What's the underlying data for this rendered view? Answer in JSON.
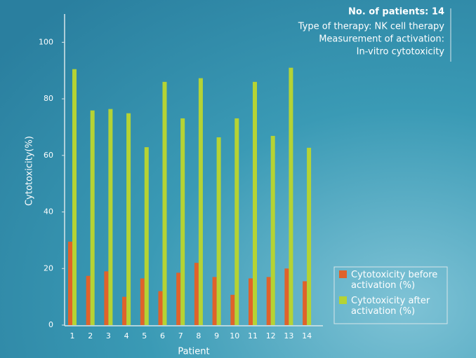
{
  "chart_data": {
    "type": "bar",
    "x_label": "Patient",
    "y_label": "Cytotoxicity(%)",
    "annotation": {
      "title": "No. of patients: 14",
      "lines": [
        "Type of therapy: NK cell therapy",
        "Measurement of activation:",
        "In-vitro cytotoxicity"
      ]
    },
    "categories": [
      "1",
      "2",
      "3",
      "4",
      "5",
      "6",
      "7",
      "8",
      "9",
      "10",
      "11",
      "12",
      "13",
      "14"
    ],
    "series": [
      {
        "name": "Cytotoxicity before activation (%)",
        "color": "#e0622a",
        "values": [
          29.5,
          17.4,
          19,
          10,
          16.5,
          12,
          18.5,
          22,
          17,
          10.7,
          16.5,
          17,
          20,
          15.5
        ]
      },
      {
        "name": "Cytotoxicity after activation (%)",
        "color": "#b5d334",
        "values": [
          90.5,
          75.9,
          76.4,
          74.9,
          62.9,
          86,
          73.1,
          87.3,
          66.4,
          73.1,
          86,
          66.9,
          91,
          62.7
        ]
      }
    ],
    "ylim": [
      0,
      110
    ],
    "yticks": [
      0,
      20,
      40,
      60,
      80,
      100
    ],
    "legend": "lower right"
  }
}
